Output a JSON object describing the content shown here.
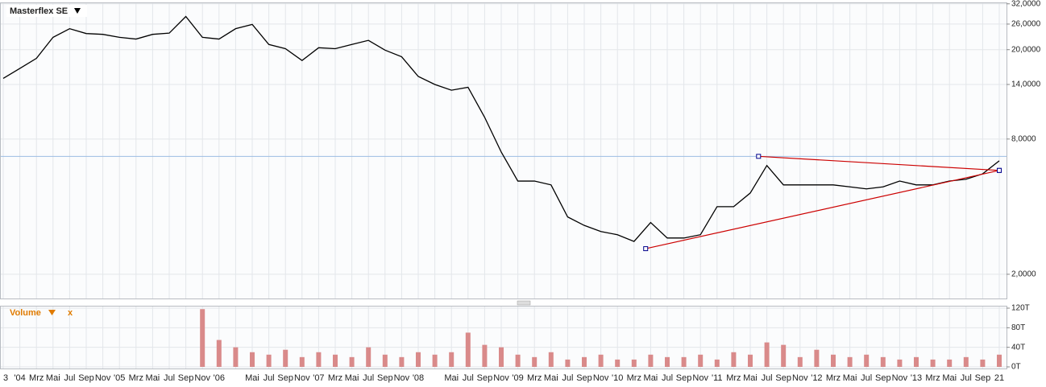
{
  "chart_data": [
    {
      "type": "line",
      "title": "Masterflex SE",
      "log_scale": true,
      "grid": true,
      "color": "#000000",
      "categories": [
        "3",
        "'04",
        "Mrz",
        "Mai",
        "Jul",
        "Sep",
        "Nov",
        "'05",
        "Mrz",
        "Mai",
        "Jul",
        "Sep",
        "Nov",
        "'06",
        null,
        "Mai",
        "Jul",
        "Sep",
        "Nov",
        "'07",
        "Mrz",
        "Mai",
        "Jul",
        "Sep",
        "Nov",
        "'08",
        null,
        "Mai",
        "Jul",
        "Sep",
        "Nov",
        "'09",
        "Mrz",
        "Mai",
        "Jul",
        "Sep",
        "Nov",
        "'10",
        "Mrz",
        "Mai",
        "Jul",
        "Sep",
        "Nov",
        "'11",
        "Mrz",
        "Mai",
        "Jul",
        "Sep",
        "Nov",
        "'12",
        "Mrz",
        "Mai",
        "Jul",
        "Sep",
        "Nov",
        "'13",
        "Mrz",
        "Mai",
        "Jul",
        "Sep",
        "21"
      ],
      "values": [
        14.9,
        16.5,
        18.3,
        22.7,
        24.8,
        23.6,
        23.4,
        22.7,
        22.3,
        23.4,
        23.7,
        28.1,
        22.7,
        22.3,
        24.8,
        25.9,
        21.1,
        20.2,
        17.9,
        20.4,
        20.2,
        21.1,
        22.0,
        19.9,
        18.6,
        15.2,
        14.0,
        13.2,
        13.6,
        10.0,
        7.0,
        5.2,
        5.2,
        5.0,
        3.6,
        3.3,
        3.1,
        3.0,
        2.8,
        3.4,
        2.9,
        2.9,
        3.0,
        4.0,
        4.0,
        4.6,
        6.1,
        5.0,
        5.0,
        5.0,
        5.0,
        4.9,
        4.8,
        4.9,
        5.2,
        5.0,
        5.0,
        5.2,
        5.3,
        5.6,
        6.4
      ],
      "ylim": [
        1.56,
        32.2
      ],
      "yticks": [
        {
          "value": 2,
          "label": "2,0000"
        },
        {
          "value": 8,
          "label": "8,0000"
        },
        {
          "value": 14,
          "label": "14,0000"
        },
        {
          "value": 20,
          "label": "20,0000"
        },
        {
          "value": 26,
          "label": "26,0000"
        },
        {
          "value": 32,
          "label": "32,0000"
        }
      ],
      "reference_line": {
        "value": 6.7,
        "color": "#9dbde3"
      },
      "trendlines": [
        {
          "color": "#cc0000",
          "x": [
            45.5,
            60
          ],
          "y": [
            6.7,
            5.8
          ]
        },
        {
          "color": "#cc0000",
          "x": [
            38.7,
            60
          ],
          "y": [
            2.6,
            5.8
          ]
        }
      ]
    },
    {
      "type": "bar",
      "title": "Volume",
      "close_label": "x",
      "color": "#d98a8a",
      "values": [
        0,
        0,
        0,
        0,
        0,
        0,
        0,
        0,
        0,
        0,
        0,
        0,
        118,
        55,
        40,
        30,
        25,
        35,
        20,
        30,
        25,
        20,
        40,
        25,
        20,
        30,
        25,
        30,
        70,
        45,
        40,
        25,
        20,
        30,
        15,
        20,
        25,
        15,
        15,
        25,
        20,
        20,
        25,
        15,
        30,
        25,
        50,
        45,
        20,
        35,
        25,
        20,
        25,
        20,
        15,
        20,
        15,
        15,
        20,
        15,
        25
      ],
      "ylim": [
        0,
        120
      ],
      "yticks": [
        {
          "value": 0,
          "label": "0T"
        },
        {
          "value": 40,
          "label": "40T"
        },
        {
          "value": 80,
          "label": "80T"
        },
        {
          "value": 120,
          "label": "120T"
        }
      ]
    }
  ]
}
